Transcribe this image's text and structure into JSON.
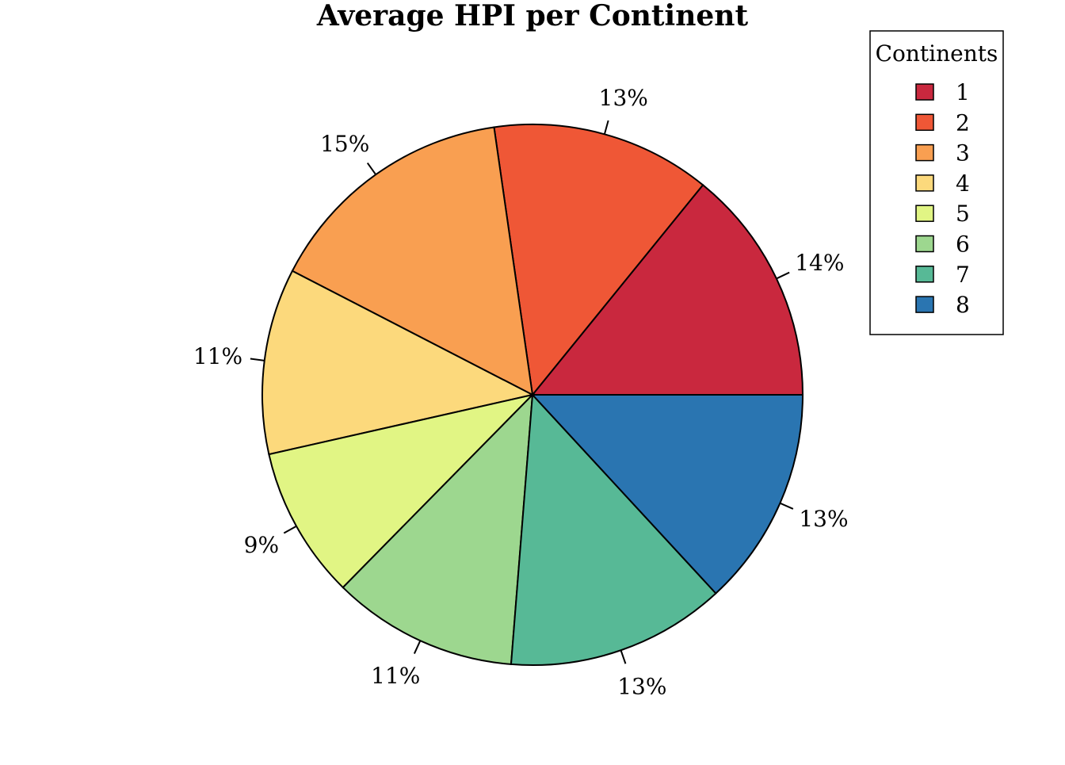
{
  "chart_data": {
    "type": "pie",
    "title": "Average HPI per Continent",
    "legend": {
      "title": "Continents",
      "placement": "top-right"
    },
    "slices": [
      {
        "name": "1",
        "value": 14,
        "label": "14%",
        "color": "#C9283E"
      },
      {
        "name": "2",
        "value": 13,
        "label": "13%",
        "color": "#EF5736"
      },
      {
        "name": "3",
        "value": 15,
        "label": "15%",
        "color": "#F99F51"
      },
      {
        "name": "4",
        "value": 11,
        "label": "11%",
        "color": "#FCD97C"
      },
      {
        "name": "5",
        "value": 9,
        "label": "9%",
        "color": "#E1F584"
      },
      {
        "name": "6",
        "value": 11,
        "label": "11%",
        "color": "#9DD78F"
      },
      {
        "name": "7",
        "value": 13,
        "label": "13%",
        "color": "#57B996"
      },
      {
        "name": "8",
        "value": 13,
        "label": "13%",
        "color": "#2A75B1"
      }
    ]
  }
}
